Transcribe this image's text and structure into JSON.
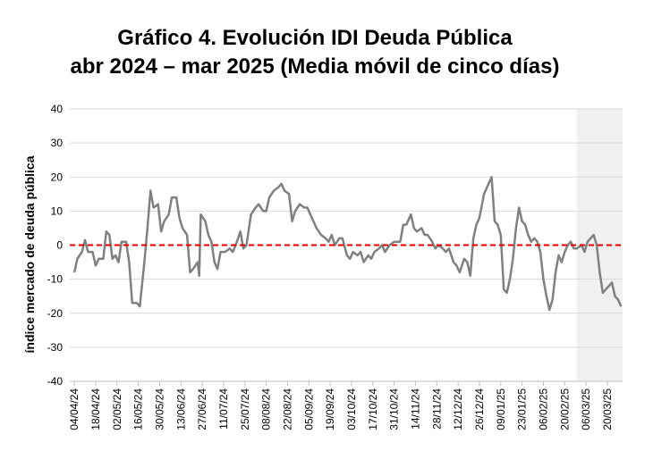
{
  "chart_data": {
    "type": "line",
    "title": [
      "Gráfico 4. Evolución IDI Deuda Pública",
      "abr 2024 – mar 2025 (Media móvil de cinco días)"
    ],
    "y_label": "índice mercado de deuda pública",
    "x": [
      "04/04/24",
      "06/04/24",
      "09/04/24",
      "11/04/24",
      "13/04/24",
      "16/04/24",
      "18/04/24",
      "20/04/24",
      "23/04/24",
      "25/04/24",
      "27/04/24",
      "29/04/24",
      "01/05/24",
      "03/05/24",
      "05/05/24",
      "08/05/24",
      "10/05/24",
      "12/05/24",
      "15/05/24",
      "17/05/24",
      "20/05/24",
      "22/05/24",
      "24/05/24",
      "26/05/24",
      "29/05/24",
      "31/05/24",
      "02/06/24",
      "05/06/24",
      "07/06/24",
      "10/06/24",
      "12/06/24",
      "14/06/24",
      "17/06/24",
      "19/06/24",
      "21/06/24",
      "24/06/24",
      "25/06/24",
      "26/06/24",
      "29/06/24",
      "01/07/24",
      "03/07/24",
      "05/07/24",
      "07/07/24",
      "09/07/24",
      "12/07/24",
      "15/07/24",
      "17/07/24",
      "19/07/24",
      "22/07/24",
      "24/07/24",
      "26/07/24",
      "29/07/24",
      "01/08/24",
      "03/08/24",
      "06/08/24",
      "08/08/24",
      "10/08/24",
      "13/08/24",
      "16/08/24",
      "18/08/24",
      "20/08/24",
      "23/08/24",
      "25/08/24",
      "27/08/24",
      "30/08/24",
      "02/09/24",
      "04/09/24",
      "07/09/24",
      "10/09/24",
      "13/09/24",
      "16/09/24",
      "18/09/24",
      "20/09/24",
      "22/09/24",
      "25/09/24",
      "27/09/24",
      "30/09/24",
      "02/10/24",
      "04/10/24",
      "07/10/24",
      "09/10/24",
      "11/10/24",
      "14/10/24",
      "16/10/24",
      "18/10/24",
      "21/10/24",
      "23/10/24",
      "25/10/24",
      "28/10/24",
      "31/10/24",
      "04/11/24",
      "06/11/24",
      "08/11/24",
      "11/11/24",
      "13/11/24",
      "15/11/24",
      "18/11/24",
      "20/11/24",
      "22/11/24",
      "25/11/24",
      "27/11/24",
      "29/11/24",
      "02/12/24",
      "04/12/24",
      "06/12/24",
      "09/12/24",
      "11/12/24",
      "13/12/24",
      "16/12/24",
      "18/12/24",
      "20/12/24",
      "22/12/24",
      "24/12/24",
      "26/12/24",
      "29/12/24",
      "01/01/25",
      "03/01/25",
      "05/01/25",
      "07/01/25",
      "09/01/25",
      "11/01/25",
      "13/01/25",
      "15/01/25",
      "17/01/25",
      "19/01/25",
      "21/01/25",
      "23/01/25",
      "25/01/25",
      "27/01/25",
      "29/01/25",
      "31/01/25",
      "02/02/25",
      "04/02/25",
      "06/02/25",
      "08/02/25",
      "10/02/25",
      "12/02/25",
      "14/02/25",
      "16/02/25",
      "18/02/25",
      "20/02/25",
      "22/02/25",
      "24/02/25",
      "26/02/25",
      "28/02/25",
      "03/03/25",
      "05/03/25",
      "07/03/25",
      "09/03/25",
      "11/03/25",
      "13/03/25",
      "15/03/25",
      "17/03/25",
      "19/03/25",
      "21/03/25",
      "23/03/25",
      "25/03/25",
      "27/03/25",
      "29/03/25"
    ],
    "series": [
      {
        "color": "#808080",
        "values": [
          -8,
          -4,
          -2,
          1.5,
          -2,
          -2,
          -6,
          -4,
          -4,
          4,
          3,
          -4,
          -3,
          -5,
          1,
          1,
          -5,
          -17,
          -17,
          -18,
          -5,
          5,
          16,
          11,
          12,
          4,
          7,
          9,
          14,
          14,
          8,
          5,
          3,
          -8,
          -7,
          -5,
          -9,
          9,
          7,
          3,
          1,
          -5,
          -7,
          -2,
          -2,
          -1,
          -2,
          0,
          4,
          -1,
          0,
          9,
          11,
          12,
          10,
          10,
          14,
          16,
          17,
          18,
          16,
          15,
          7,
          10,
          12,
          11,
          11,
          8,
          5,
          3,
          2,
          1,
          3,
          0,
          2,
          2,
          -3,
          -4,
          -2,
          -3,
          -2,
          -5,
          -3,
          -4,
          -2,
          -1,
          0,
          -2,
          0,
          1,
          1,
          6,
          6,
          9,
          5,
          4,
          5,
          3,
          3,
          1,
          -1,
          0,
          -1,
          -2,
          -1,
          -5,
          -6,
          -8,
          -4,
          -5,
          -9,
          2,
          6,
          8,
          15,
          18,
          20,
          7,
          6,
          3,
          -13,
          -14,
          -10,
          -4,
          5,
          11,
          7,
          6,
          3,
          1,
          2,
          1,
          -2,
          -10,
          -15,
          -19,
          -16,
          -8,
          -3,
          -5,
          -2,
          0,
          1,
          -1,
          -1,
          0,
          -2,
          1,
          2,
          3,
          0,
          -8,
          -14,
          -13,
          -12,
          -11,
          -15,
          -16,
          -18
        ]
      }
    ],
    "xlim": [
      "01/04/24",
      "30/03/25"
    ],
    "xticks": [
      "04/04/24",
      "18/04/24",
      "02/05/24",
      "16/05/24",
      "30/05/24",
      "13/06/24",
      "27/06/24",
      "11/07/24",
      "25/07/24",
      "08/08/24",
      "22/08/24",
      "05/09/24",
      "19/09/24",
      "03/10/24",
      "17/10/24",
      "31/10/24",
      "14/11/24",
      "28/11/24",
      "12/12/24",
      "26/12/24",
      "09/01/25",
      "23/01/25",
      "06/02/25",
      "20/02/25",
      "06/03/25",
      "20/03/25"
    ],
    "ylim": [
      -40,
      40
    ],
    "yticks": [
      -40,
      -30,
      -20,
      -10,
      0,
      10,
      20,
      30,
      40
    ],
    "grid": true,
    "zero_line": {
      "value": 0,
      "color": "#e00000"
    },
    "highlight_range": {
      "x": [
        "28/02/25",
        "30/03/25"
      ],
      "color": "#f0f0f0"
    }
  }
}
